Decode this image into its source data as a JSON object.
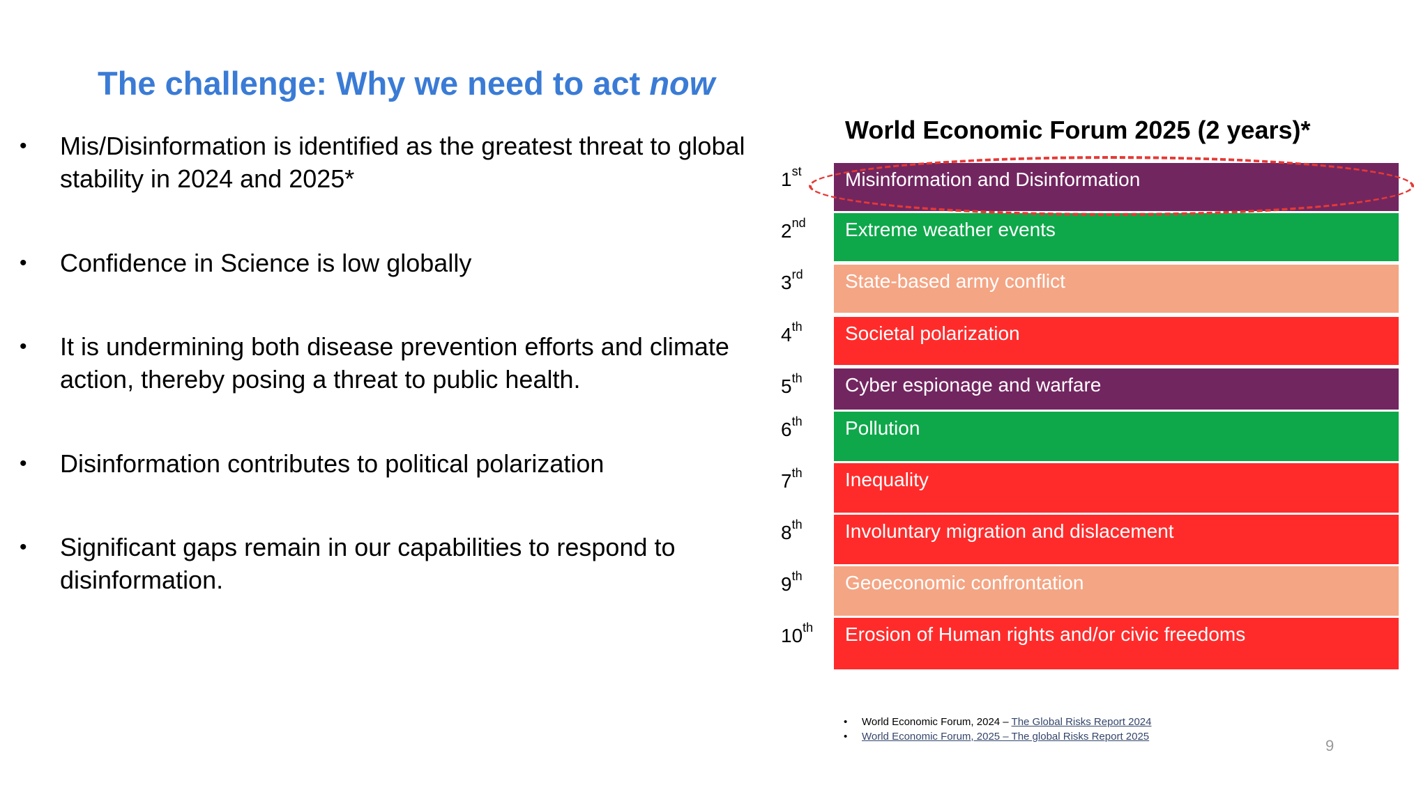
{
  "title": {
    "main": "The challenge: Why we need to act ",
    "emphasis": "now"
  },
  "bullets": [
    {
      "symbol": "•",
      "text": "Mis/Disinformation is identified as the greatest threat to global stability in 2024 and 2025*"
    },
    {
      "symbol": "•",
      "text": "Confidence in Science is low globally"
    },
    {
      "symbol": "•",
      "text": "It is undermining both disease prevention efforts and climate action, thereby posing a threat to public health."
    },
    {
      "symbol": "•",
      "text": "Disinformation contributes to political polarization"
    },
    {
      "symbol": "•",
      "text": "Significant gaps remain in our capabilities to respond to disinformation."
    }
  ],
  "ranking": {
    "title": "World Economic Forum 2025 (2 years)*",
    "items": [
      {
        "num": "1",
        "suffix": "st",
        "label": "Misinformation and Disinformation",
        "color": "#722660",
        "highlighted": true
      },
      {
        "num": "2",
        "suffix": "nd",
        "label": "Extreme weather events",
        "color": "#0ea84a"
      },
      {
        "num": "3",
        "suffix": "rd",
        "label": "State-based army conflict",
        "color": "#f4a584"
      },
      {
        "num": "4",
        "suffix": "th",
        "label": "Societal polarization",
        "color": "#ff2b2b"
      },
      {
        "num": "5",
        "suffix": "th",
        "label": "Cyber espionage and warfare",
        "color": "#722660"
      },
      {
        "num": "6",
        "suffix": "th",
        "label": "Pollution",
        "color": "#0ea84a"
      },
      {
        "num": "7",
        "suffix": "th",
        "label": "Inequality",
        "color": "#ff2b2b"
      },
      {
        "num": "8",
        "suffix": "th",
        "label": "Involuntary migration and dislacement",
        "color": "#ff2b2b"
      },
      {
        "num": "9",
        "suffix": "th",
        "label": "Geoeconomic confrontation",
        "color": "#f4a584"
      },
      {
        "num": "10",
        "suffix": "th",
        "label": "Erosion of Human rights and/or civic freedoms",
        "color": "#ff2b2b"
      }
    ]
  },
  "references": [
    {
      "symbol": "•",
      "prefix": "World Economic Forum, 2024 – ",
      "link": "The Global Risks Report 2024"
    },
    {
      "symbol": "•",
      "prefix": "",
      "link": "World Economic Forum, 2025 – The global Risks Report 2025"
    }
  ],
  "page_number": "9"
}
